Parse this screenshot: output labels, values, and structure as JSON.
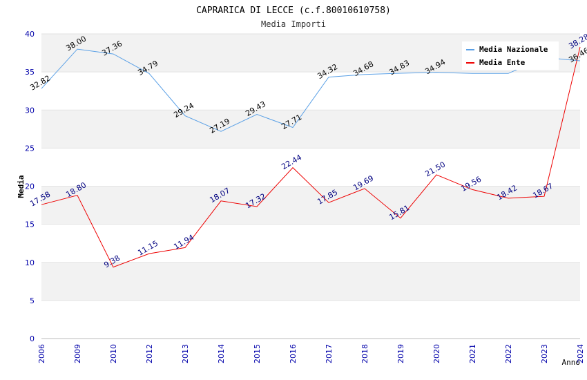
{
  "chart_data": {
    "type": "line",
    "title": "CAPRARICA DI LECCE (c.f.80010610758)",
    "subtitle": "Media Importi",
    "xlabel": "Anno",
    "ylabel": "Media",
    "ylim": [
      0,
      40
    ],
    "yticks": [
      "0",
      "5",
      "10",
      "15",
      "20",
      "25",
      "30",
      "35",
      "40"
    ],
    "categories": [
      "2006",
      "2009",
      "2010",
      "2012",
      "2013",
      "2014",
      "2015",
      "2016",
      "2017",
      "2018",
      "2019",
      "2020",
      "2021",
      "2022",
      "2023",
      "2024"
    ],
    "legend_position": "top-right",
    "series": [
      {
        "name": "Media Nazionale",
        "color": "#5aa0e6",
        "label_color": "#000000",
        "values": [
          32.82,
          38.0,
          37.36,
          34.79,
          29.24,
          27.19,
          29.43,
          27.71,
          34.32,
          34.68,
          34.83,
          34.94,
          34.8,
          34.8,
          36.9,
          36.46
        ],
        "labels": [
          "32.82",
          "38.00",
          "37.36",
          "34.79",
          "29.24",
          "27.19",
          "29.43",
          "27.71",
          "34.32",
          "34.68",
          "34.83",
          "34.94",
          "",
          "",
          "",
          "36.46"
        ]
      },
      {
        "name": "Media Ente",
        "color": "#ee0000",
        "label_color": "#000080",
        "values": [
          17.58,
          18.8,
          9.38,
          11.15,
          11.94,
          18.07,
          17.32,
          22.44,
          17.85,
          19.69,
          15.81,
          21.5,
          19.56,
          18.42,
          18.67,
          38.28
        ],
        "labels": [
          "17.58",
          "18.80",
          "9.38",
          "11.15",
          "11.94",
          "18.07",
          "17.32",
          "22.44",
          "17.85",
          "19.69",
          "15.81",
          "21.50",
          "19.56",
          "18.42",
          "18.67",
          "38.28"
        ]
      }
    ]
  }
}
